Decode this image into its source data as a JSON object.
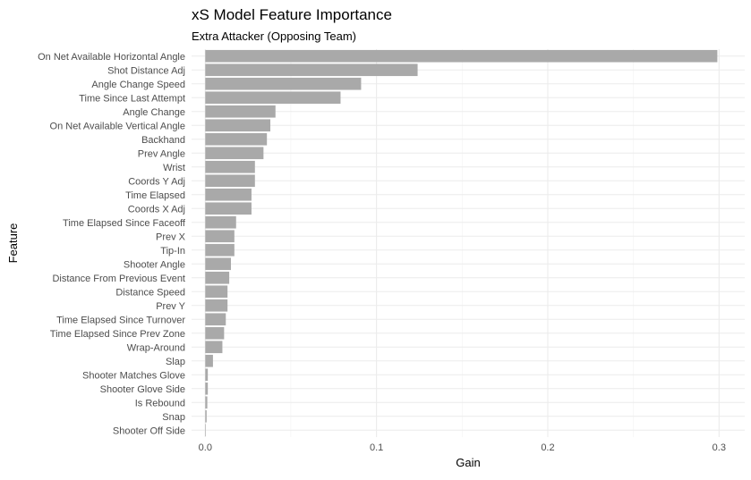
{
  "chart_data": {
    "type": "bar",
    "orientation": "horizontal",
    "title": "xS Model Feature Importance",
    "subtitle": "Extra Attacker (Opposing Team)",
    "xlabel": "Gain",
    "ylabel": "Feature",
    "xlim": [
      -0.008,
      0.315
    ],
    "xticks": [
      0.0,
      0.1,
      0.2,
      0.3
    ],
    "xtick_labels": [
      "0.0",
      "0.1",
      "0.2",
      "0.3"
    ],
    "grid": true,
    "bar_color": "#a9a9a9",
    "categories": [
      "On Net Available Horizontal Angle",
      "Shot Distance Adj",
      "Angle Change Speed",
      "Time Since Last Attempt",
      "Angle Change",
      "On Net Available Vertical Angle",
      "Backhand",
      "Prev Angle",
      "Wrist",
      "Coords Y Adj",
      "Time Elapsed",
      "Coords X Adj",
      "Time Elapsed Since Faceoff",
      "Prev X",
      "Tip-In",
      "Shooter Angle",
      "Distance From Previous Event",
      "Distance Speed",
      "Prev Y",
      "Time Elapsed Since Turnover",
      "Time Elapsed Since Prev Zone",
      "Wrap-Around",
      "Slap",
      "Shooter Matches Glove",
      "Shooter Glove Side",
      "Is Rebound",
      "Snap",
      "Shooter Off Side"
    ],
    "values": [
      0.299,
      0.124,
      0.091,
      0.079,
      0.041,
      0.038,
      0.036,
      0.034,
      0.029,
      0.029,
      0.027,
      0.027,
      0.018,
      0.017,
      0.017,
      0.015,
      0.014,
      0.013,
      0.013,
      0.012,
      0.011,
      0.01,
      0.0045,
      0.0015,
      0.0015,
      0.0012,
      0.0008,
      0.0003
    ]
  }
}
